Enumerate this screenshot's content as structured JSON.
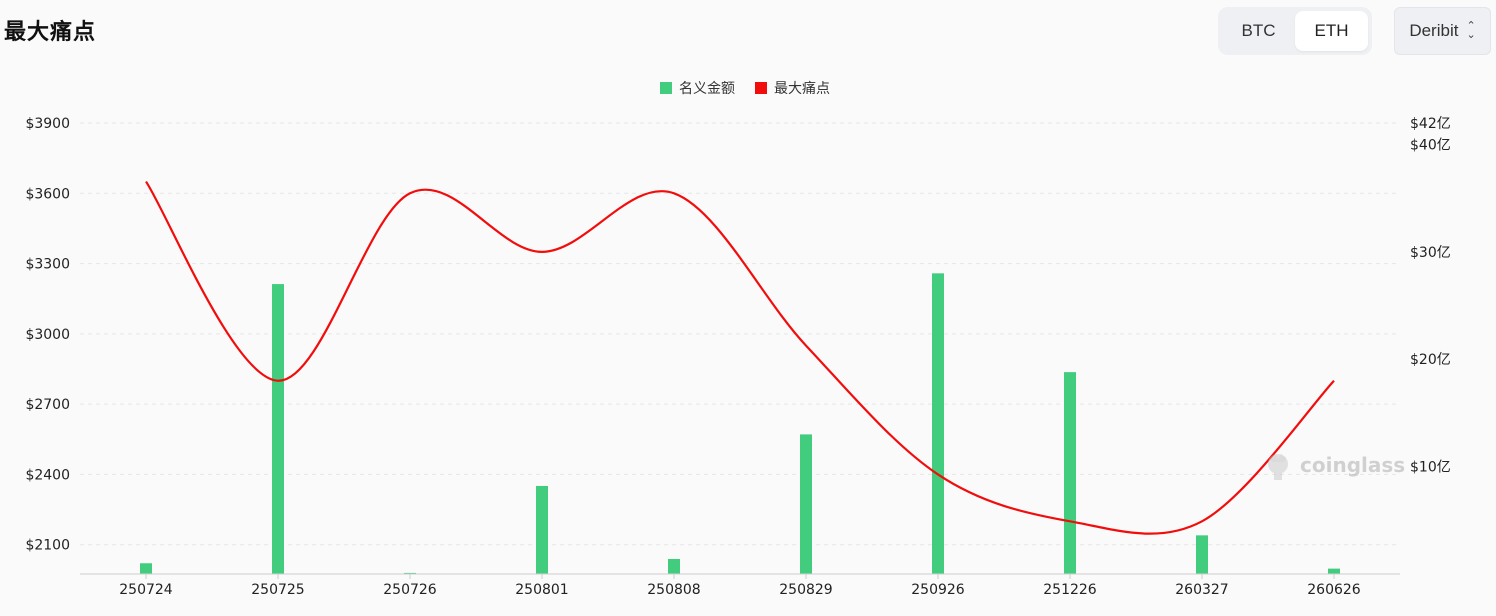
{
  "header": {
    "title": "最大痛点",
    "tabs": [
      {
        "label": "BTC",
        "active": false
      },
      {
        "label": "ETH",
        "active": true
      }
    ],
    "exchange_select": {
      "value": "Deribit"
    }
  },
  "watermark": "coinglass",
  "colors": {
    "bar": "#42cc7e",
    "line": "#f20d0d",
    "grid": "#e6e6e6"
  },
  "chart_data": {
    "type": "bar",
    "categories": [
      "250724",
      "250725",
      "250726",
      "250801",
      "250808",
      "250829",
      "250926",
      "251226",
      "260327",
      "260626"
    ],
    "legend": [
      "名义金额",
      "最大痛点"
    ],
    "legend_position": "top-center",
    "series": [
      {
        "name": "名义金额",
        "type": "bar",
        "axis": "right",
        "values": [
          1.0,
          27.0,
          0.1,
          8.2,
          1.4,
          13.0,
          28.0,
          18.8,
          3.6,
          0.5
        ]
      },
      {
        "name": "最大痛点",
        "type": "line",
        "axis": "left",
        "smooth": true,
        "values": [
          3650,
          2800,
          3600,
          3350,
          3600,
          2950,
          2400,
          2200,
          2200,
          2800
        ]
      }
    ],
    "y_left": {
      "ticks": [
        "$3900",
        "$3600",
        "$3300",
        "$3000",
        "$2700",
        "$2400",
        "$2100"
      ],
      "tick_values": [
        3900,
        3600,
        3300,
        3000,
        2700,
        2400,
        2100
      ],
      "ylim": [
        1975,
        3900
      ]
    },
    "y_right": {
      "ticks": [
        "$42亿",
        "$40亿",
        "$30亿",
        "$20亿",
        "$10亿"
      ],
      "tick_values": [
        42,
        40,
        30,
        20,
        10
      ],
      "ylim": [
        0,
        42
      ]
    },
    "grid": true
  }
}
